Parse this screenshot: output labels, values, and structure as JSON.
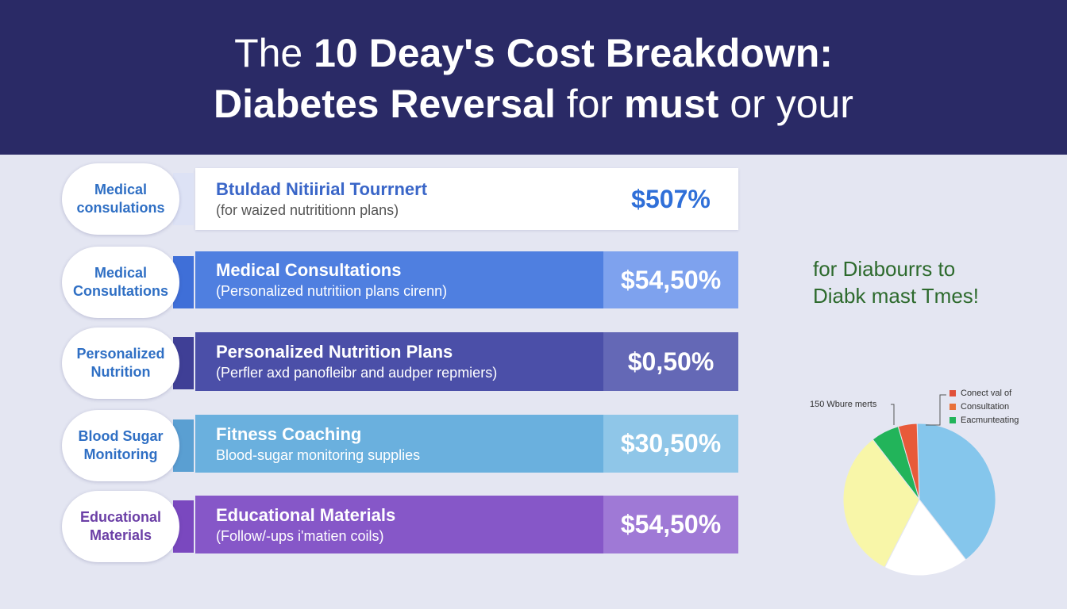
{
  "title": {
    "line1": [
      {
        "text": "The ",
        "bold": false
      },
      {
        "text": "10 Deay's Cost Breakdown:",
        "bold": true
      }
    ],
    "line2": [
      {
        "text": "Diabetes Reversal ",
        "bold": true
      },
      {
        "text": "for ",
        "bold": false
      },
      {
        "text": "must ",
        "bold": true
      },
      {
        "text": "or your",
        "bold": false
      }
    ]
  },
  "colors": {
    "header": "#2a2a66",
    "page_background": "#e4e6f2",
    "side_note": "#2d6a2d"
  },
  "rows": [
    {
      "pill_label": "Medical\nconsulations",
      "pill_color": "#2f6fc4",
      "main": "Btuldad Nitiirial Tourrnert",
      "sub": "(for waized nutrititionn plans)",
      "value": "$507%",
      "bar_color": "#ffffff",
      "value_color": "#ffffff",
      "text_color": "#3a66c8",
      "sub_color": "#555555",
      "value_text_color": "#2f6fd8",
      "connector_color": "#dde2f5"
    },
    {
      "pill_label": "Medical\nConsultations",
      "pill_color": "#2f6fc4",
      "main": "Medical Consultations",
      "sub": "(Personalized nutritiion plans cirenn)",
      "value": "$54,50%",
      "bar_color": "#4f7fe0",
      "value_color": "#7ea2ee",
      "text_color": "#ffffff",
      "sub_color": "#ffffff",
      "value_text_color": "#ffffff",
      "connector_color": "#3f6fd8"
    },
    {
      "pill_label": "Personalized\nNutrition",
      "pill_color": "#2f6fc4",
      "main": "Personalized Nutrition Plans",
      "sub": "(Perfler axd panofleibr and audper repmiers)",
      "value": "$0,50%",
      "bar_color": "#4b4fa8",
      "value_color": "#6468b6",
      "text_color": "#ffffff",
      "sub_color": "#ffffff",
      "value_text_color": "#ffffff",
      "connector_color": "#3f3f96"
    },
    {
      "pill_label": "Blood Sugar\nMonitoring",
      "pill_color": "#2f6fc4",
      "main": "Fitness Coaching",
      "sub": "Blood-sugar monitoring supplies",
      "value": "$30,50%",
      "bar_color": "#6ab0de",
      "value_color": "#8fc6e8",
      "text_color": "#ffffff",
      "sub_color": "#ffffff",
      "value_text_color": "#ffffff",
      "connector_color": "#5a9fd2"
    },
    {
      "pill_label": "Educational\nMaterials",
      "pill_color": "#6b3fa6",
      "main": "Educational Materials",
      "sub": "(Follow/-ups i'matien coils)",
      "value": "$54,50%",
      "bar_color": "#8657c8",
      "value_color": "#9f79d6",
      "text_color": "#ffffff",
      "sub_color": "#ffffff",
      "value_text_color": "#ffffff",
      "connector_color": "#7a48bf"
    }
  ],
  "side_note": "for Diabourrs to\nDiabk mast Tmes!",
  "chart_data": {
    "type": "pie",
    "callout": "150 Wbure merts",
    "legend_placement": "top-right",
    "legend": [
      {
        "label": "Conect val of",
        "color": "#e0503a"
      },
      {
        "label": "Consultation",
        "color": "#e8713a"
      },
      {
        "label": "Eacmunteating",
        "color": "#22b45a"
      }
    ],
    "slices": [
      {
        "value": 40,
        "color": "#85c6ec"
      },
      {
        "value": 18,
        "color": "#ffffff"
      },
      {
        "value": 32,
        "color": "#f8f6a8"
      },
      {
        "value": 6,
        "color": "#22b45a"
      },
      {
        "value": 4,
        "color": "#e85a3a"
      }
    ]
  }
}
